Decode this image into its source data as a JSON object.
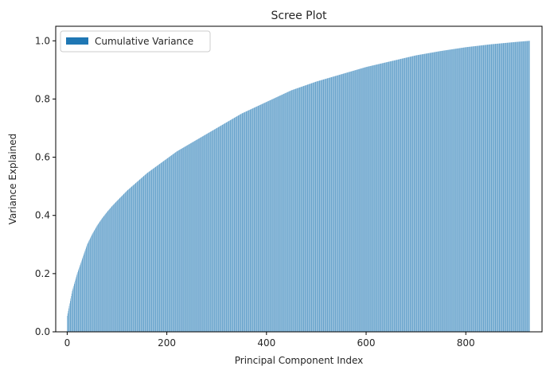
{
  "chart_data": {
    "type": "bar",
    "title": "Scree Plot",
    "xlabel": "Principal Component Index",
    "ylabel": "Variance Explained",
    "xlim": [
      -23,
      953
    ],
    "ylim": [
      0,
      1.05
    ],
    "xticks": [
      {
        "value": 0,
        "label": "0"
      },
      {
        "value": 200,
        "label": "200"
      },
      {
        "value": 400,
        "label": "400"
      },
      {
        "value": 600,
        "label": "600"
      },
      {
        "value": 800,
        "label": "800"
      }
    ],
    "yticks": [
      {
        "value": 0.0,
        "label": "0.0"
      },
      {
        "value": 0.2,
        "label": "0.2"
      },
      {
        "value": 0.4,
        "label": "0.4"
      },
      {
        "value": 0.6,
        "label": "0.6"
      },
      {
        "value": 0.8,
        "label": "0.8"
      },
      {
        "value": 1.0,
        "label": "1.0"
      }
    ],
    "grid": false,
    "legend": {
      "position": "upper left"
    },
    "series": [
      {
        "name": "Cumulative Variance",
        "color": "#1f77b4",
        "x": [
          0,
          10,
          20,
          30,
          40,
          50,
          60,
          70,
          80,
          90,
          100,
          120,
          140,
          160,
          180,
          200,
          220,
          240,
          260,
          280,
          300,
          350,
          400,
          450,
          500,
          550,
          600,
          650,
          700,
          750,
          800,
          850,
          900,
          928
        ],
        "values": [
          0.055,
          0.14,
          0.2,
          0.25,
          0.3,
          0.335,
          0.365,
          0.39,
          0.412,
          0.432,
          0.45,
          0.485,
          0.515,
          0.545,
          0.57,
          0.595,
          0.62,
          0.64,
          0.66,
          0.68,
          0.7,
          0.75,
          0.79,
          0.83,
          0.86,
          0.885,
          0.91,
          0.93,
          0.95,
          0.965,
          0.978,
          0.988,
          0.996,
          1.0
        ]
      }
    ]
  }
}
